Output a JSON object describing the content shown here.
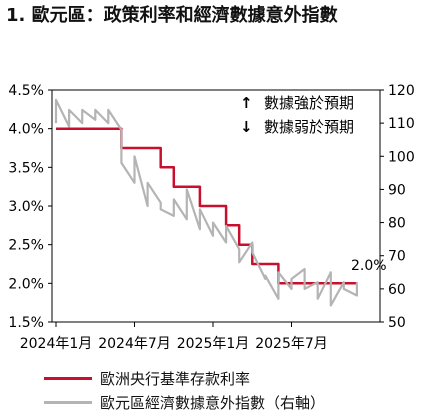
{
  "title": "1. 歐元區：政策利率和經濟數據意外指數",
  "chart_data": {
    "type": "line",
    "left_axis": {
      "ticks": [
        "4.5%",
        "4.0%",
        "3.5%",
        "3.0%",
        "2.5%",
        "2.0%",
        "1.5%"
      ],
      "range": [
        1.5,
        4.5
      ]
    },
    "right_axis": {
      "ticks": [
        "120",
        "110",
        "100",
        "90",
        "80",
        "70",
        "60",
        "50"
      ],
      "range": [
        50,
        120
      ]
    },
    "x_ticks": [
      "2024年1月",
      "2024年7月",
      "2025年1月",
      "2025年7月"
    ],
    "x_tick_dates": [
      "2024-01",
      "2024-07",
      "2025-01",
      "2025-07"
    ],
    "x_range": [
      "2024-01",
      "2025-12"
    ],
    "annotations": {
      "up": "數據強於預期",
      "down": "數據弱於預期",
      "up_arrow": "↑",
      "down_arrow": "↓",
      "rate_label": "2.0%"
    },
    "series": [
      {
        "name": "歐洲央行基準存款利率",
        "axis": "left",
        "color": "#c8102e",
        "style": "step",
        "points": [
          [
            "2024-01",
            4.0
          ],
          [
            "2024-06",
            4.0
          ],
          [
            "2024-06",
            3.75
          ],
          [
            "2024-09",
            3.75
          ],
          [
            "2024-09",
            3.5
          ],
          [
            "2024-10",
            3.5
          ],
          [
            "2024-10",
            3.25
          ],
          [
            "2024-12",
            3.25
          ],
          [
            "2024-12",
            3.0
          ],
          [
            "2025-02",
            3.0
          ],
          [
            "2025-02",
            2.75
          ],
          [
            "2025-03",
            2.75
          ],
          [
            "2025-03",
            2.5
          ],
          [
            "2025-04",
            2.5
          ],
          [
            "2025-04",
            2.25
          ],
          [
            "2025-06",
            2.25
          ],
          [
            "2025-06",
            2.0
          ],
          [
            "2025-12",
            2.0
          ]
        ]
      },
      {
        "name": "歐元區經濟數據意外指數（右軸）",
        "axis": "right",
        "color": "#b4b4b4",
        "style": "line",
        "points": [
          [
            "2024-01",
            110
          ],
          [
            "2024-01",
            117
          ],
          [
            "2024-02",
            109
          ],
          [
            "2024-02",
            114
          ],
          [
            "2024-03",
            110
          ],
          [
            "2024-03",
            114
          ],
          [
            "2024-04",
            111
          ],
          [
            "2024-04",
            114
          ],
          [
            "2024-05",
            110
          ],
          [
            "2024-05",
            114
          ],
          [
            "2024-06",
            108
          ],
          [
            "2024-06",
            98
          ],
          [
            "2024-07",
            92
          ],
          [
            "2024-07",
            100
          ],
          [
            "2024-08",
            85
          ],
          [
            "2024-08",
            92
          ],
          [
            "2024-09",
            86
          ],
          [
            "2024-09",
            84
          ],
          [
            "2024-10",
            82
          ],
          [
            "2024-10",
            87
          ],
          [
            "2024-11",
            81
          ],
          [
            "2024-11",
            90
          ],
          [
            "2024-12",
            78
          ],
          [
            "2024-12",
            84
          ],
          [
            "2025-01",
            76
          ],
          [
            "2025-01",
            80
          ],
          [
            "2025-02",
            74
          ],
          [
            "2025-02",
            79
          ],
          [
            "2025-03",
            72
          ],
          [
            "2025-03",
            68
          ],
          [
            "2025-04",
            74
          ],
          [
            "2025-04",
            71
          ],
          [
            "2025-05",
            63
          ],
          [
            "2025-05",
            64
          ],
          [
            "2025-06",
            57
          ],
          [
            "2025-06",
            65
          ],
          [
            "2025-07",
            60
          ],
          [
            "2025-07",
            63
          ],
          [
            "2025-08",
            66
          ],
          [
            "2025-08",
            60
          ],
          [
            "2025-09",
            62
          ],
          [
            "2025-09",
            57
          ],
          [
            "2025-10",
            65
          ],
          [
            "2025-10",
            55
          ],
          [
            "2025-11",
            62
          ],
          [
            "2025-11",
            60
          ],
          [
            "2025-12",
            58
          ],
          [
            "2025-12",
            62
          ]
        ]
      }
    ]
  },
  "legend": {
    "rate": "歐洲央行基準存款利率",
    "index": "歐元區經濟數據意外指數（右軸）"
  }
}
